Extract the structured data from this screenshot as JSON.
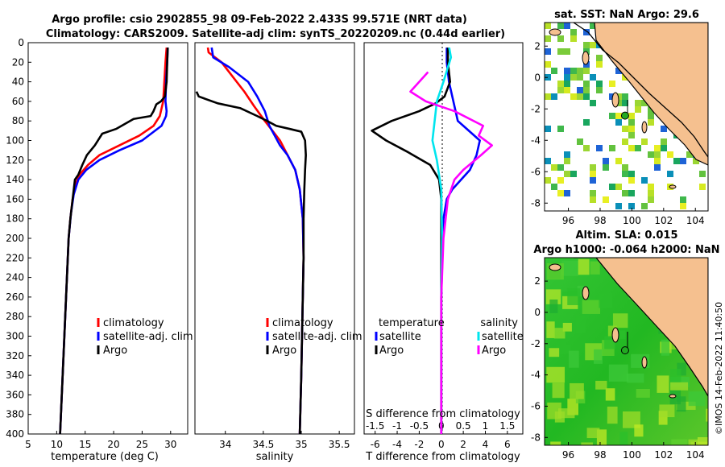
{
  "title_line1": "Argo profile: csio 2902855_98 09-Feb-2022 2.433S 99.571E (NRT data)",
  "title_line2": "Climatology: CARS2009. Satellite-adj clim: synTS_20220209.nc (0.44d earlier)",
  "sst_title": "sat. SST: NaN Argo: 29.6",
  "sla_title_line1": "Altim. SLA: 0.015",
  "sla_title_line2": "Argo h1000: -0.064 h2000: NaN",
  "copyright": "©IMOS 14-Feb-2022 11:40:50",
  "depth_ticks": [
    "0",
    "20",
    "40",
    "60",
    "80",
    "100",
    "120",
    "140",
    "160",
    "180",
    "200",
    "220",
    "240",
    "260",
    "280",
    "300",
    "320",
    "340",
    "360",
    "380",
    "400"
  ],
  "colors": {
    "climatology": "#ff0000",
    "satellite": "#0000ff",
    "argo": "#000000",
    "salinity_sat": "#00e5ee",
    "salinity_diff": "#ff00ff",
    "land": "#f5c08f"
  },
  "chart_data": [
    {
      "type": "line",
      "name": "temperature",
      "xlabel": "temperature (deg C)",
      "ylabel": "depth",
      "xlim": [
        5,
        33
      ],
      "ylim": [
        400,
        0
      ],
      "xticks": [
        "5",
        "10",
        "15",
        "20",
        "25",
        "30"
      ],
      "legend": [
        "climatology",
        "satellite-adj. clim",
        "Argo"
      ],
      "series": [
        {
          "name": "climatology",
          "color": "#ff0000",
          "points": [
            [
              29.3,
              5
            ],
            [
              29.1,
              20
            ],
            [
              28.9,
              40
            ],
            [
              28.7,
              60
            ],
            [
              28.1,
              75
            ],
            [
              27,
              85
            ],
            [
              24.5,
              95
            ],
            [
              21,
              105
            ],
            [
              17.5,
              115
            ],
            [
              15.5,
              125
            ],
            [
              14,
              135
            ],
            [
              13.3,
              145
            ],
            [
              12.8,
              160
            ],
            [
              12.4,
              180
            ],
            [
              12.1,
              200
            ],
            [
              11.8,
              240
            ],
            [
              11.5,
              280
            ],
            [
              11.2,
              320
            ],
            [
              10.9,
              360
            ],
            [
              10.6,
              400
            ]
          ]
        },
        {
          "name": "satellite-adj. clim",
          "color": "#0000ff",
          "points": [
            [
              29.5,
              5
            ],
            [
              29.4,
              20
            ],
            [
              29.2,
              40
            ],
            [
              29.1,
              60
            ],
            [
              29.3,
              70
            ],
            [
              29.2,
              75
            ],
            [
              28.4,
              85
            ],
            [
              25,
              100
            ],
            [
              21,
              110
            ],
            [
              17.5,
              120
            ],
            [
              15.2,
              130
            ],
            [
              13.8,
              140
            ],
            [
              13,
              155
            ],
            [
              12.5,
              175
            ],
            [
              12.1,
              200
            ],
            [
              11.8,
              240
            ],
            [
              11.5,
              280
            ],
            [
              11.2,
              320
            ],
            [
              10.9,
              360
            ],
            [
              10.6,
              400
            ]
          ]
        },
        {
          "name": "Argo",
          "color": "#000000",
          "points": [
            [
              29.5,
              5
            ],
            [
              29.4,
              20
            ],
            [
              29.3,
              40
            ],
            [
              29,
              55
            ],
            [
              28.3,
              60
            ],
            [
              27.5,
              63
            ],
            [
              27,
              70
            ],
            [
              26.5,
              75
            ],
            [
              23.5,
              78
            ],
            [
              20.5,
              88
            ],
            [
              18,
              93
            ],
            [
              16.7,
              105
            ],
            [
              15.3,
              115
            ],
            [
              14.5,
              125
            ],
            [
              13.8,
              135
            ],
            [
              13.2,
              140
            ],
            [
              12.8,
              160
            ],
            [
              12.4,
              180
            ],
            [
              12.1,
              200
            ],
            [
              11.8,
              240
            ],
            [
              11.5,
              280
            ],
            [
              11.2,
              320
            ],
            [
              10.9,
              360
            ],
            [
              10.6,
              400
            ]
          ]
        }
      ]
    },
    {
      "type": "line",
      "name": "salinity",
      "xlabel": "salinity",
      "xlim": [
        33.6,
        35.7
      ],
      "ylim": [
        400,
        0
      ],
      "xticks": [
        "34",
        "34.5",
        "35",
        "35.5"
      ],
      "legend": [
        "climatology",
        "satellite-adj. clim",
        "Argo"
      ],
      "series": [
        {
          "name": "climatology",
          "color": "#ff0000",
          "points": [
            [
              33.77,
              5
            ],
            [
              33.78,
              10
            ],
            [
              33.95,
              20
            ],
            [
              34.1,
              35
            ],
            [
              34.25,
              50
            ],
            [
              34.38,
              65
            ],
            [
              34.52,
              80
            ],
            [
              34.62,
              90
            ],
            [
              34.72,
              100
            ],
            [
              34.82,
              115
            ],
            [
              34.92,
              130
            ],
            [
              34.98,
              150
            ],
            [
              35.02,
              180
            ],
            [
              35.03,
              220
            ],
            [
              35.02,
              260
            ],
            [
              35.01,
              300
            ],
            [
              35.0,
              340
            ],
            [
              34.99,
              370
            ],
            [
              34.98,
              400
            ]
          ]
        },
        {
          "name": "satellite-adj. clim",
          "color": "#0000ff",
          "points": [
            [
              33.82,
              5
            ],
            [
              33.84,
              15
            ],
            [
              34.05,
              25
            ],
            [
              34.3,
              40
            ],
            [
              34.42,
              55
            ],
            [
              34.52,
              70
            ],
            [
              34.58,
              85
            ],
            [
              34.65,
              95
            ],
            [
              34.72,
              105
            ],
            [
              34.82,
              115
            ],
            [
              34.92,
              130
            ],
            [
              34.98,
              150
            ],
            [
              35.02,
              180
            ],
            [
              35.03,
              220
            ],
            [
              35.02,
              260
            ],
            [
              35.01,
              300
            ],
            [
              35.0,
              340
            ],
            [
              34.99,
              370
            ],
            [
              34.98,
              400
            ]
          ]
        },
        {
          "name": "Argo",
          "color": "#000000",
          "points": [
            [
              33.62,
              50
            ],
            [
              33.65,
              55
            ],
            [
              33.9,
              62
            ],
            [
              34.2,
              67
            ],
            [
              34.42,
              75
            ],
            [
              34.55,
              80
            ],
            [
              34.67,
              85
            ],
            [
              34.84,
              88
            ],
            [
              35.0,
              91
            ],
            [
              35.05,
              100
            ],
            [
              35.06,
              115
            ],
            [
              35.05,
              130
            ],
            [
              35.04,
              150
            ],
            [
              35.03,
              180
            ],
            [
              35.03,
              220
            ],
            [
              35.02,
              260
            ],
            [
              35.01,
              300
            ],
            [
              35.0,
              340
            ],
            [
              34.99,
              370
            ],
            [
              34.98,
              400
            ]
          ]
        }
      ]
    },
    {
      "type": "line",
      "name": "differences",
      "xlabel": "T difference from climatology",
      "secondary_xlabel": "S difference from climatology",
      "xlim": [
        -7,
        7.4
      ],
      "ylim": [
        400,
        0
      ],
      "xticks": [
        "-6",
        "-4",
        "-2",
        "0",
        "2",
        "4",
        "6"
      ],
      "secondary_xticks": [
        "-1.5",
        "-1",
        "-0.5",
        "0",
        "0.5",
        "1",
        "1.5"
      ],
      "legend_titles": [
        "temperature",
        "salinity"
      ],
      "legend": [
        "satellite",
        "Argo",
        "satellite",
        "Argo"
      ],
      "series": [
        {
          "name": "T satellite",
          "color": "#0000ff",
          "points": [
            [
              0.5,
              5
            ],
            [
              0.5,
              20
            ],
            [
              0.7,
              40
            ],
            [
              1.1,
              60
            ],
            [
              1.3,
              70
            ],
            [
              1.5,
              80
            ],
            [
              2,
              85
            ],
            [
              3.5,
              100
            ],
            [
              3.2,
              115
            ],
            [
              2.6,
              130
            ],
            [
              1.8,
              140
            ],
            [
              1,
              150
            ],
            [
              0.5,
              160
            ],
            [
              0.2,
              180
            ],
            [
              0.1,
              220
            ],
            [
              0,
              260
            ],
            [
              0,
              300
            ],
            [
              0,
              340
            ],
            [
              0,
              380
            ],
            [
              0,
              400
            ]
          ]
        },
        {
          "name": "T Argo",
          "color": "#000000",
          "points": [
            [
              0.6,
              5
            ],
            [
              0.6,
              20
            ],
            [
              0.8,
              40
            ],
            [
              0.3,
              55
            ],
            [
              -0.5,
              62
            ],
            [
              -2,
              70
            ],
            [
              -4.5,
              80
            ],
            [
              -6.3,
              90
            ],
            [
              -5,
              100
            ],
            [
              -3,
              112
            ],
            [
              -1,
              125
            ],
            [
              -0.2,
              140
            ],
            [
              0,
              160
            ],
            [
              0,
              200
            ],
            [
              0,
              260
            ],
            [
              0,
              320
            ],
            [
              0,
              380
            ],
            [
              0,
              400
            ]
          ]
        },
        {
          "name": "S satellite",
          "color": "#00e5ee",
          "points": [
            [
              0.18,
              5
            ],
            [
              0.22,
              15
            ],
            [
              0.05,
              40
            ],
            [
              -0.1,
              60
            ],
            [
              -0.15,
              80
            ],
            [
              -0.2,
              100
            ],
            [
              -0.1,
              120
            ],
            [
              0,
              150
            ],
            [
              0.02,
              200
            ],
            [
              0,
              260
            ],
            [
              0,
              320
            ],
            [
              0,
              400
            ]
          ]
        },
        {
          "name": "S Argo",
          "color": "#ff00ff",
          "points": [
            [
              -0.3,
              30
            ],
            [
              -0.7,
              50
            ],
            [
              -0.35,
              60
            ],
            [
              0.3,
              70
            ],
            [
              0.95,
              85
            ],
            [
              0.85,
              95
            ],
            [
              1.15,
              105
            ],
            [
              0.9,
              115
            ],
            [
              0.5,
              130
            ],
            [
              0.3,
              140
            ],
            [
              0.15,
              160
            ],
            [
              0.05,
              200
            ],
            [
              0,
              260
            ],
            [
              0,
              320
            ],
            [
              0,
              400
            ]
          ]
        }
      ]
    },
    {
      "type": "heatmap",
      "name": "sat-sst-map",
      "xlim": [
        94.5,
        104.8
      ],
      "ylim": [
        -8.5,
        3.5
      ],
      "xticks": [
        "96",
        "98",
        "100",
        "102",
        "104"
      ],
      "yticks": [
        "2",
        "0",
        "-2",
        "-4",
        "-6",
        "-8"
      ],
      "argo_position": [
        99.57,
        -2.43
      ]
    },
    {
      "type": "heatmap",
      "name": "altimetry-sla-map",
      "xlim": [
        94.5,
        104.8
      ],
      "ylim": [
        -8.5,
        3.5
      ],
      "xticks": [
        "96",
        "98",
        "100",
        "102",
        "104"
      ],
      "yticks": [
        "2",
        "0",
        "-2",
        "-4",
        "-6",
        "-8"
      ],
      "argo_position": [
        99.57,
        -2.43
      ]
    }
  ]
}
